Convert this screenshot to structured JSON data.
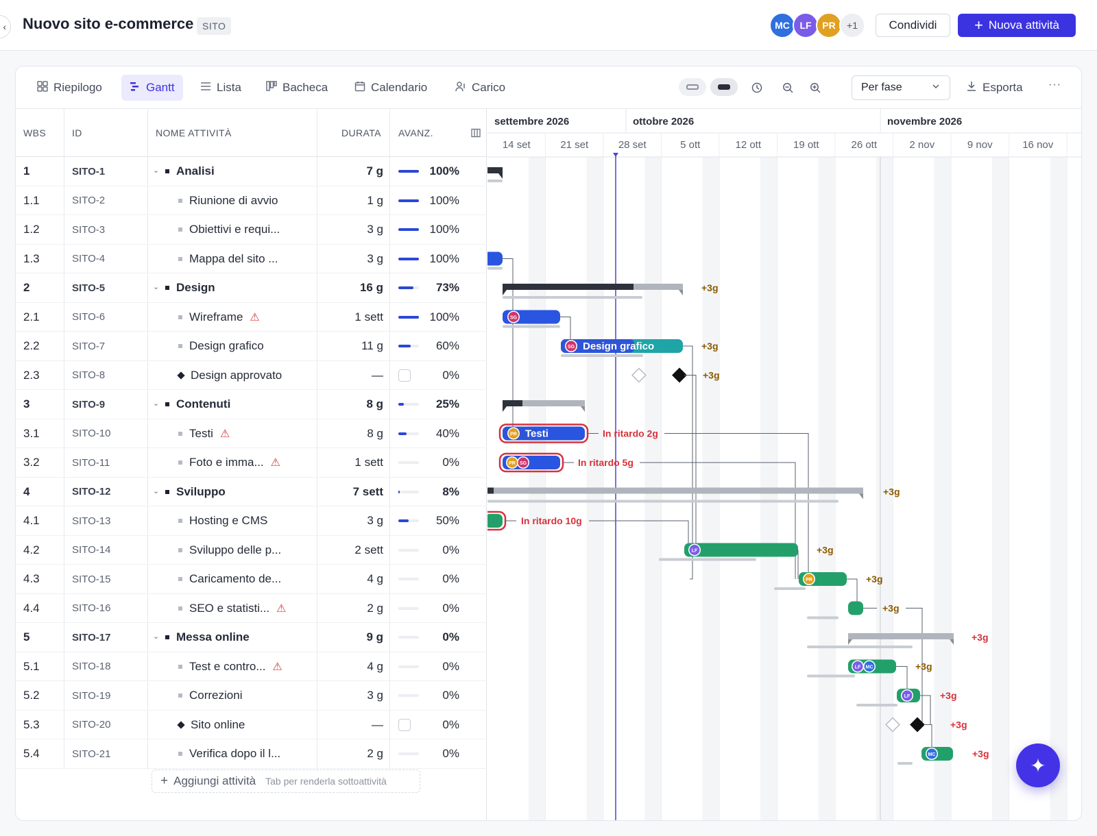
{
  "header": {
    "back_glyph": "‹",
    "title": "Nuovo sito e-commerce",
    "tag": "SITO",
    "avatars": [
      {
        "initials": "MC",
        "color": "#2f6fe0"
      },
      {
        "initials": "LF",
        "color": "#7b5ce8"
      },
      {
        "initials": "PR",
        "color": "#e0a020"
      }
    ],
    "more_count": "+1",
    "share_label": "Condividi",
    "new_task_label": "Nuova attività"
  },
  "toolbar": {
    "tabs": [
      {
        "label": "Riepilogo",
        "icon": "grid-icon"
      },
      {
        "label": "Gantt",
        "icon": "gantt-icon",
        "active": true
      },
      {
        "label": "Lista",
        "icon": "list-icon"
      },
      {
        "label": "Bacheca",
        "icon": "board-icon"
      },
      {
        "label": "Calendario",
        "icon": "calendar-icon"
      },
      {
        "label": "Carico",
        "icon": "workload-icon"
      }
    ],
    "group_by": "Per fase",
    "export_label": "Esporta",
    "more_glyph": "···"
  },
  "table": {
    "columns": {
      "wbs": "WBS",
      "id": "ID",
      "name": "NOME ATTIVITÀ",
      "duration": "DURATA",
      "progress": "AVANZ."
    },
    "rows": [
      {
        "wbs": "1",
        "id": "SITO-1",
        "name": "Analisi",
        "dur": "7 g",
        "pct": "100%",
        "p": 1.0,
        "group": true
      },
      {
        "wbs": "1.1",
        "id": "SITO-2",
        "name": "Riunione di avvio",
        "dur": "1 g",
        "pct": "100%",
        "p": 1.0
      },
      {
        "wbs": "1.2",
        "id": "SITO-3",
        "name": "Obiettivi e requi...",
        "dur": "3 g",
        "pct": "100%",
        "p": 1.0
      },
      {
        "wbs": "1.3",
        "id": "SITO-4",
        "name": "Mappa del sito ...",
        "dur": "3 g",
        "pct": "100%",
        "p": 1.0
      },
      {
        "wbs": "2",
        "id": "SITO-5",
        "name": "Design",
        "dur": "16 g",
        "pct": "73%",
        "p": 0.73,
        "group": true
      },
      {
        "wbs": "2.1",
        "id": "SITO-6",
        "name": "Wireframe",
        "dur": "1 sett",
        "pct": "100%",
        "p": 1.0,
        "warn": true
      },
      {
        "wbs": "2.2",
        "id": "SITO-7",
        "name": "Design grafico",
        "dur": "11 g",
        "pct": "60%",
        "p": 0.6
      },
      {
        "wbs": "2.3",
        "id": "SITO-8",
        "name": "Design approvato",
        "dur": "—",
        "pct": "0%",
        "milestone": true
      },
      {
        "wbs": "3",
        "id": "SITO-9",
        "name": "Contenuti",
        "dur": "8 g",
        "pct": "25%",
        "p": 0.25,
        "group": true
      },
      {
        "wbs": "3.1",
        "id": "SITO-10",
        "name": "Testi",
        "dur": "8 g",
        "pct": "40%",
        "p": 0.4,
        "warn": true
      },
      {
        "wbs": "3.2",
        "id": "SITO-11",
        "name": "Foto e imma...",
        "dur": "1 sett",
        "pct": "0%",
        "p": 0,
        "warn": true
      },
      {
        "wbs": "4",
        "id": "SITO-12",
        "name": "Sviluppo",
        "dur": "7 sett",
        "pct": "8%",
        "p": 0.08,
        "group": true
      },
      {
        "wbs": "4.1",
        "id": "SITO-13",
        "name": "Hosting e CMS",
        "dur": "3 g",
        "pct": "50%",
        "p": 0.5
      },
      {
        "wbs": "4.2",
        "id": "SITO-14",
        "name": "Sviluppo delle p...",
        "dur": "2 sett",
        "pct": "0%",
        "p": 0
      },
      {
        "wbs": "4.3",
        "id": "SITO-15",
        "name": "Caricamento de...",
        "dur": "4 g",
        "pct": "0%",
        "p": 0
      },
      {
        "wbs": "4.4",
        "id": "SITO-16",
        "name": "SEO e statisti...",
        "dur": "2 g",
        "pct": "0%",
        "p": 0,
        "warn": true
      },
      {
        "wbs": "5",
        "id": "SITO-17",
        "name": "Messa online",
        "dur": "9 g",
        "pct": "0%",
        "p": 0,
        "group": true
      },
      {
        "wbs": "5.1",
        "id": "SITO-18",
        "name": "Test e contro...",
        "dur": "4 g",
        "pct": "0%",
        "p": 0,
        "warn": true
      },
      {
        "wbs": "5.2",
        "id": "SITO-19",
        "name": "Correzioni",
        "dur": "3 g",
        "pct": "0%",
        "p": 0
      },
      {
        "wbs": "5.3",
        "id": "SITO-20",
        "name": "Sito online",
        "dur": "—",
        "pct": "0%",
        "milestone": true
      },
      {
        "wbs": "5.4",
        "id": "SITO-21",
        "name": "Verifica dopo il l...",
        "dur": "2 g",
        "pct": "0%",
        "p": 0
      }
    ],
    "add_label": "Aggiungi attività",
    "add_hint": "Tab per renderla sottoattività"
  },
  "gantt": {
    "months": [
      "settembre 2026",
      "ottobre 2026",
      "novembre 2026"
    ],
    "weeks": [
      "14 set",
      "21 set",
      "28 set",
      "5 ott",
      "12 ott",
      "19 ott",
      "26 ott",
      "2 nov",
      "9 nov",
      "16 nov"
    ],
    "labels": {
      "slip": "+3g",
      "late_testi": "In ritardo 2g",
      "late_foto": "In ritardo 5g",
      "late_hosting": "In ritardo 10g",
      "bar_design": "Design grafico",
      "bar_testi": "Testi"
    },
    "colors": {
      "blue": "#2a55e0",
      "green": "#23a06a",
      "teal": "#1fa4a8",
      "red": "#d8313a",
      "today": "#4a45c8"
    }
  },
  "fab_glyph": "✦"
}
